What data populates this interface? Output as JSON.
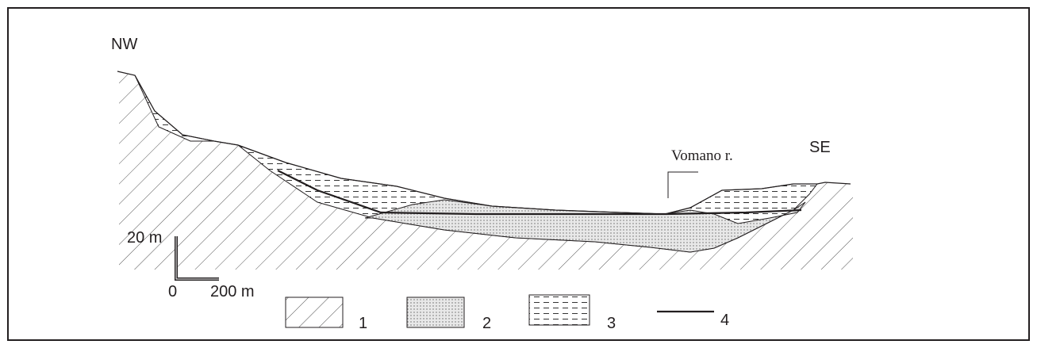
{
  "labels": {
    "nw": "NW",
    "se": "SE",
    "river": "Vomano r."
  },
  "scale": {
    "vertical": "20 m",
    "origin": "0",
    "horizontal": "200 m"
  },
  "legend": [
    "1",
    "2",
    "3",
    "4"
  ]
}
